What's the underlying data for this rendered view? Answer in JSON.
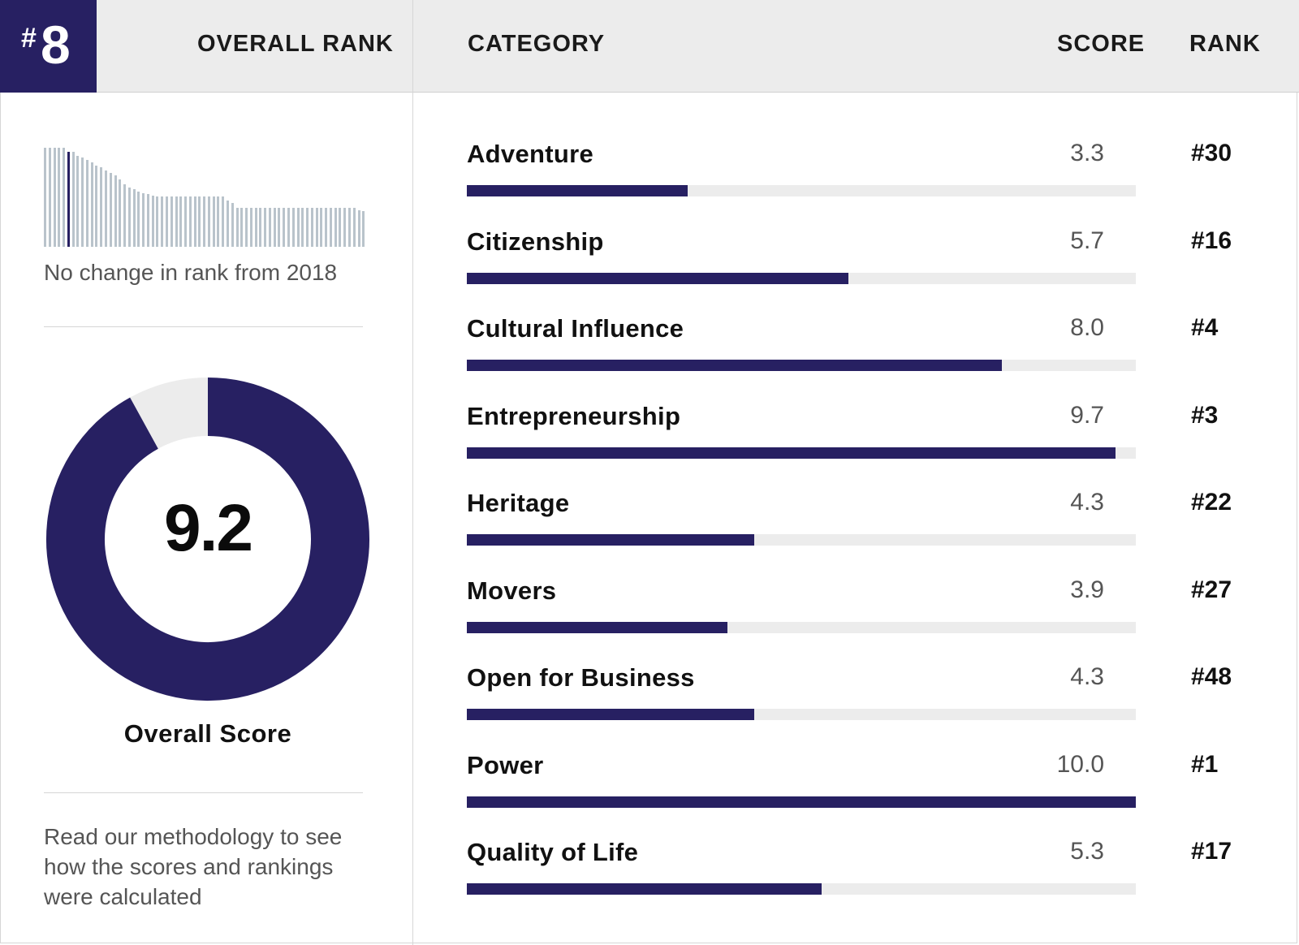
{
  "header": {
    "overall_rank_badge": "8",
    "overall_rank_label": "OVERALL RANK",
    "category_label": "CATEGORY",
    "score_label": "SCORE",
    "rank_label": "RANK"
  },
  "left_panel": {
    "history_caption": "No change in rank from 2018",
    "overall_score": "9.2",
    "overall_score_label": "Overall Score",
    "methodology_text": "Read our methodology to see how the scores and rankings were calculated"
  },
  "colors": {
    "accent": "#272062",
    "track": "#ececec",
    "history_bar": "#b9c3cb"
  },
  "chart_data": [
    {
      "type": "bar",
      "orientation": "horizontal",
      "categories": [
        "Adventure",
        "Citizenship",
        "Cultural Influence",
        "Entrepreneurship",
        "Heritage",
        "Movers",
        "Open for Business",
        "Power",
        "Quality of Life"
      ],
      "values": [
        3.3,
        5.7,
        8.0,
        9.7,
        4.3,
        3.9,
        4.3,
        10.0,
        5.3
      ],
      "score_labels": [
        "3.3",
        "5.7",
        "8.0",
        "9.7",
        "4.3",
        "3.9",
        "4.3",
        "10.0",
        "5.3"
      ],
      "ranks": [
        "#30",
        "#16",
        "#4",
        "#3",
        "#22",
        "#27",
        "#48",
        "#1",
        "#17"
      ],
      "xlim": [
        0,
        10
      ]
    },
    {
      "type": "pie",
      "style": "donut",
      "value": 9.2,
      "max": 10
    },
    {
      "type": "bar",
      "description_role": "rank history sparkline",
      "values": [
        100,
        100,
        100,
        100,
        100,
        96,
        96,
        92,
        90,
        88,
        85,
        82,
        80,
        77,
        75,
        72,
        68,
        63,
        60,
        58,
        56,
        54,
        53,
        52,
        51,
        51,
        51,
        51,
        51,
        51,
        51,
        51,
        51,
        51,
        51,
        51,
        51,
        51,
        51,
        47,
        44,
        39,
        39,
        39,
        39,
        39,
        39,
        39,
        39,
        39,
        39,
        39,
        39,
        39,
        39,
        39,
        39,
        39,
        39,
        39,
        39,
        39,
        39,
        39,
        39,
        39,
        39,
        37,
        36
      ],
      "highlight_index": 5,
      "ylim": [
        0,
        100
      ]
    }
  ]
}
